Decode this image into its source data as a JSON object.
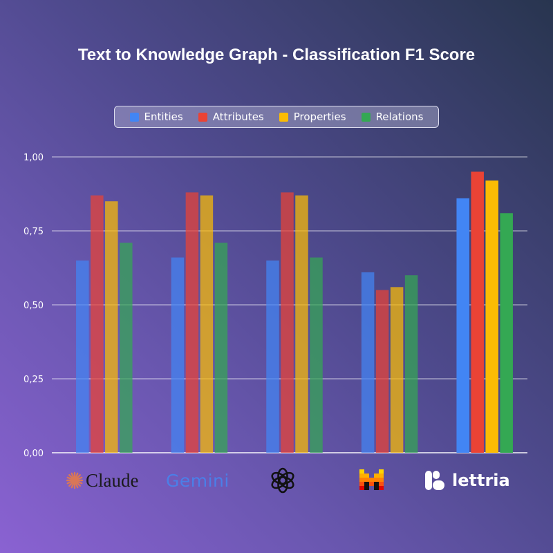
{
  "colors": {
    "entities": "#4285f4",
    "attributes": "#ea4335",
    "properties": "#fbbc04",
    "relations": "#34a853"
  },
  "chart_data": {
    "type": "bar",
    "title": "Text to Knowledge Graph - Classification F1 Score",
    "categories": [
      "Claude",
      "Gemini",
      "OpenAI",
      "Mistral",
      "lettria"
    ],
    "series": [
      {
        "name": "Entities",
        "values": [
          0.65,
          0.66,
          0.65,
          0.61,
          0.86
        ]
      },
      {
        "name": "Attributes",
        "values": [
          0.87,
          0.88,
          0.88,
          0.55,
          0.95
        ]
      },
      {
        "name": "Properties",
        "values": [
          0.85,
          0.87,
          0.87,
          0.56,
          0.92
        ]
      },
      {
        "name": "Relations",
        "values": [
          0.71,
          0.71,
          0.66,
          0.6,
          0.81
        ]
      }
    ],
    "ylim": [
      0,
      1
    ],
    "yticks": [
      0,
      0.25,
      0.5,
      0.75,
      1
    ],
    "ytick_labels": [
      "0,00",
      "0,25",
      "0,50",
      "0,75",
      "1,00"
    ],
    "legend_position": "top-center",
    "grid": true,
    "xlabel": "",
    "ylabel": ""
  },
  "legend": {
    "items": [
      "Entities",
      "Attributes",
      "Properties",
      "Relations"
    ]
  },
  "logos": {
    "claude": "Claude",
    "gemini": "Gemini",
    "openai": "openai-logo",
    "mistral": "mistral-logo",
    "lettria": "lettria"
  }
}
